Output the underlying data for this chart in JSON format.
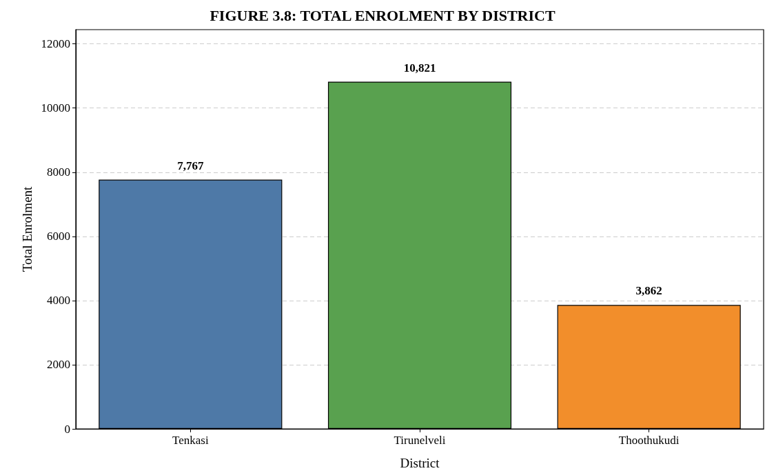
{
  "chart_data": {
    "type": "bar",
    "title": "FIGURE 3.8: TOTAL ENROLMENT BY DISTRICT",
    "xlabel": "District",
    "ylabel": "Total Enrolment",
    "categories": [
      "Tenkasi",
      "Tirunelveli",
      "Thoothukudi"
    ],
    "values": [
      7767,
      10821,
      3862
    ],
    "colors": [
      "#4e79a7",
      "#59a14f",
      "#f28e2b"
    ],
    "value_labels": [
      "7,767",
      "10,821",
      "3,862"
    ],
    "ylim": [
      0,
      12444
    ],
    "yticks": [
      0,
      2000,
      4000,
      6000,
      8000,
      10000,
      12000
    ],
    "grid": "y"
  }
}
